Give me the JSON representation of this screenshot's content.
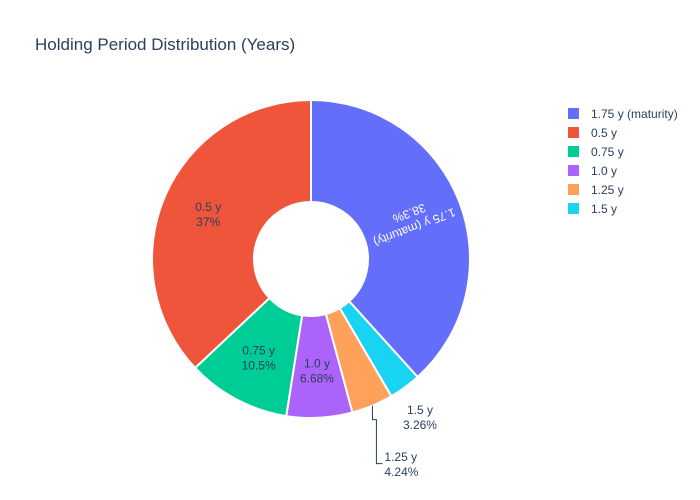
{
  "chart_data": {
    "type": "pie",
    "title": "Holding Period Distribution (Years)",
    "hole": true,
    "legend_position": "top-right",
    "slices": [
      {
        "label": "1.75 y (maturity)",
        "value": 38.3,
        "percent_text": "38.3%",
        "color": "#636efa",
        "text_color": "#ffffff"
      },
      {
        "label": "1.5 y",
        "value": 3.26,
        "percent_text": "3.26%",
        "color": "#19d3f3",
        "text_color": "#2a3f5f"
      },
      {
        "label": "1.25 y",
        "value": 4.24,
        "percent_text": "4.24%",
        "color": "#ffa15a",
        "text_color": "#2a3f5f"
      },
      {
        "label": "1.0 y",
        "value": 6.68,
        "percent_text": "6.68%",
        "color": "#ab63fa",
        "text_color": "#2a3f5f"
      },
      {
        "label": "0.75 y",
        "value": 10.5,
        "percent_text": "10.5%",
        "color": "#00cc96",
        "text_color": "#2a3f5f"
      },
      {
        "label": "0.5 y",
        "value": 37,
        "percent_text": "37%",
        "color": "#ef553b",
        "text_color": "#2a3f5f"
      }
    ],
    "legend_order": [
      "1.75 y (maturity)",
      "0.5 y",
      "0.75 y",
      "1.0 y",
      "1.25 y",
      "1.5 y"
    ]
  }
}
